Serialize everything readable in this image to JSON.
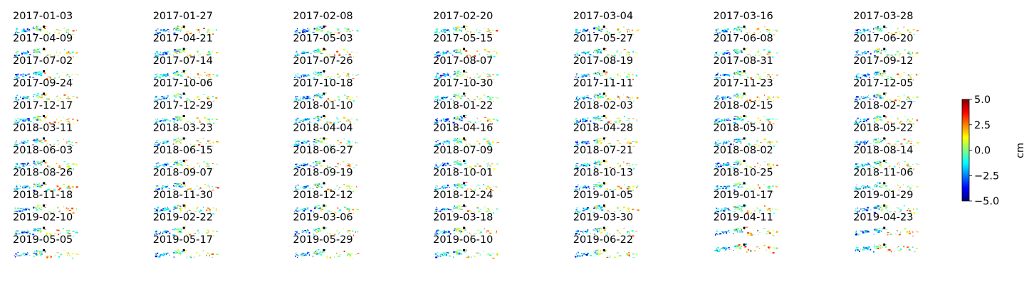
{
  "chart_data": {
    "type": "heatmap",
    "layout": {
      "rows": 12,
      "cols": 7
    },
    "panels": [
      "2017-01-03",
      "2017-01-27",
      "2017-02-08",
      "2017-02-20",
      "2017-03-04",
      "2017-03-16",
      "2017-03-28",
      "2017-04-09",
      "2017-04-21",
      "2017-05-03",
      "2017-05-15",
      "2017-05-27",
      "2017-06-08",
      "2017-06-20",
      "2017-07-02",
      "2017-07-14",
      "2017-07-26",
      "2017-08-07",
      "2017-08-19",
      "2017-08-31",
      "2017-09-12",
      "2017-09-24",
      "2017-10-06",
      "2017-10-18",
      "2017-10-30",
      "2017-11-11",
      "2017-11-23",
      "2017-12-05",
      "2017-12-17",
      "2017-12-29",
      "2018-01-10",
      "2018-01-22",
      "2018-02-03",
      "2018-02-15",
      "2018-02-27",
      "2018-03-11",
      "2018-03-23",
      "2018-04-04",
      "2018-04-16",
      "2018-04-28",
      "2018-05-10",
      "2018-05-22",
      "2018-06-03",
      "2018-06-15",
      "2018-06-27",
      "2018-07-09",
      "2018-07-21",
      "2018-08-02",
      "2018-08-14",
      "2018-08-26",
      "2018-09-07",
      "2018-09-19",
      "2018-10-01",
      "2018-10-13",
      "2018-10-25",
      "2018-11-06",
      "2018-11-18",
      "2018-11-30",
      "2018-12-12",
      "2018-12-24",
      "2019-01-05",
      "2019-01-17",
      "2019-01-29",
      "2019-02-10",
      "2019-02-22",
      "2019-03-06",
      "2019-03-18",
      "2019-03-30",
      "2019-04-11",
      "2019-04-23",
      "2019-05-05",
      "2019-05-17",
      "2019-05-29",
      "2019-06-10",
      "2019-06-22"
    ],
    "colorbar": {
      "colormap": "jet",
      "range": [
        -5.0,
        5.0
      ],
      "ticks": [
        "5.0",
        "2.5",
        "0.0",
        "−2.5",
        "−5.0"
      ],
      "label": "cm"
    },
    "axes_visible": false
  }
}
